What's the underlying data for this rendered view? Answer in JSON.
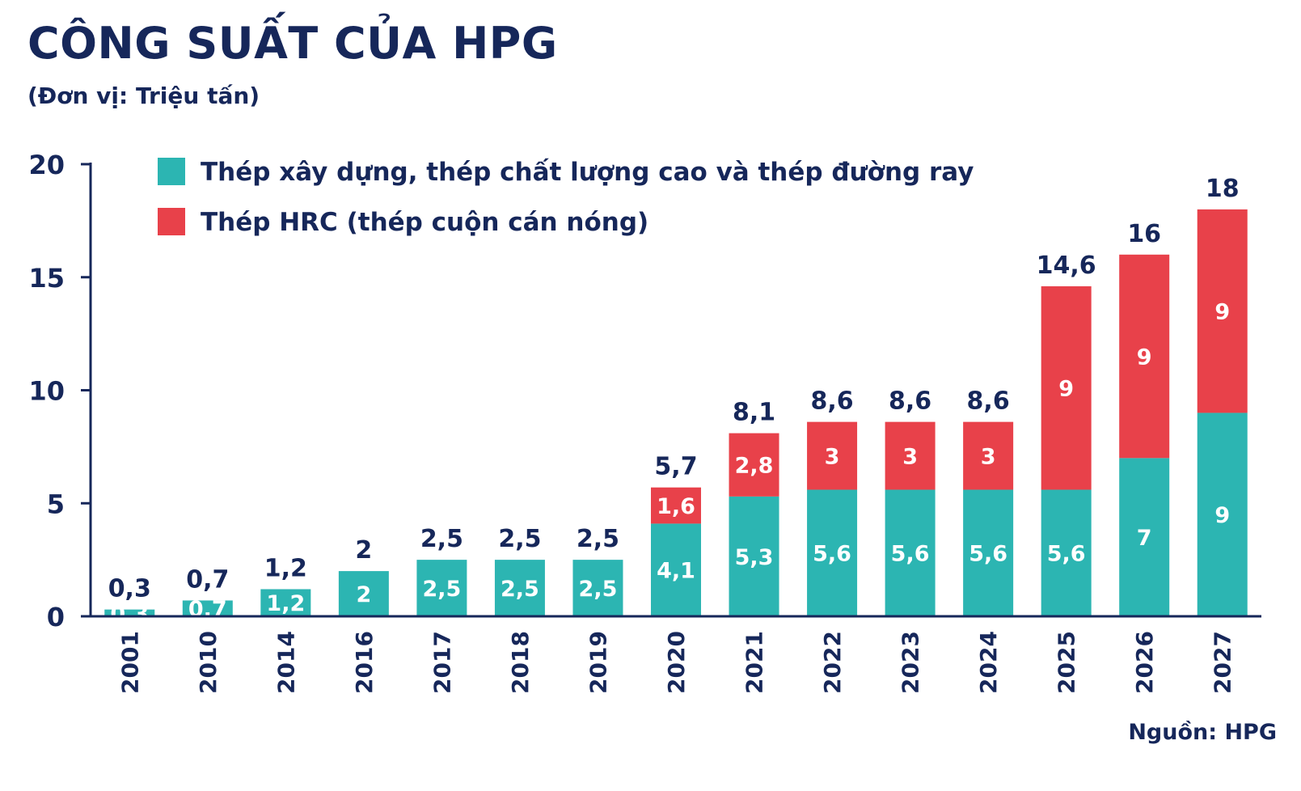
{
  "title": "CÔNG SUẤT CỦA HPG",
  "subtitle": "(Đơn vị: Triệu tấn)",
  "source": "Nguồn: HPG",
  "chart_data": {
    "type": "bar",
    "stacked": true,
    "categories": [
      "2001",
      "2010",
      "2014",
      "2016",
      "2017",
      "2018",
      "2019",
      "2020",
      "2021",
      "2022",
      "2023",
      "2024",
      "2025",
      "2026",
      "2027"
    ],
    "series": [
      {
        "name": "Thép xây dựng, thép chất lượng cao và thép đường ray",
        "color": "#2cb5b2",
        "values": [
          0.3,
          0.7,
          1.2,
          2,
          2.5,
          2.5,
          2.5,
          4.1,
          5.3,
          5.6,
          5.6,
          5.6,
          5.6,
          7,
          9
        ],
        "labels": [
          "0,3",
          "0,7",
          "1,2",
          "2",
          "2,5",
          "2,5",
          "2,5",
          "4,1",
          "5,3",
          "5,6",
          "5,6",
          "5,6",
          "5,6",
          "7",
          "9"
        ]
      },
      {
        "name": "Thép HRC (thép cuộn cán nóng)",
        "color": "#e8414a",
        "values": [
          0,
          0,
          0,
          0,
          0,
          0,
          0,
          1.6,
          2.8,
          3,
          3,
          3,
          9,
          9,
          9
        ],
        "labels": [
          "",
          "",
          "",
          "",
          "",
          "",
          "",
          "1,6",
          "2,8",
          "3",
          "3",
          "3",
          "9",
          "9",
          "9"
        ]
      }
    ],
    "totals": [
      0.3,
      0.7,
      1.2,
      2,
      2.5,
      2.5,
      2.5,
      5.7,
      8.1,
      8.6,
      8.6,
      8.6,
      14.6,
      16,
      18
    ],
    "total_labels": [
      "0,3",
      "0,7",
      "1,2",
      "2",
      "2,5",
      "2,5",
      "2,5",
      "5,7",
      "8,1",
      "8,6",
      "8,6",
      "8,6",
      "14,6",
      "16",
      "18"
    ],
    "ylim": [
      0,
      20
    ],
    "yticks": [
      0,
      5,
      10,
      15,
      20
    ],
    "ytick_labels": [
      "0",
      "5",
      "10",
      "15",
      "20"
    ],
    "xlabel": "",
    "ylabel": "",
    "legend_position": "top-left",
    "grid": false
  }
}
